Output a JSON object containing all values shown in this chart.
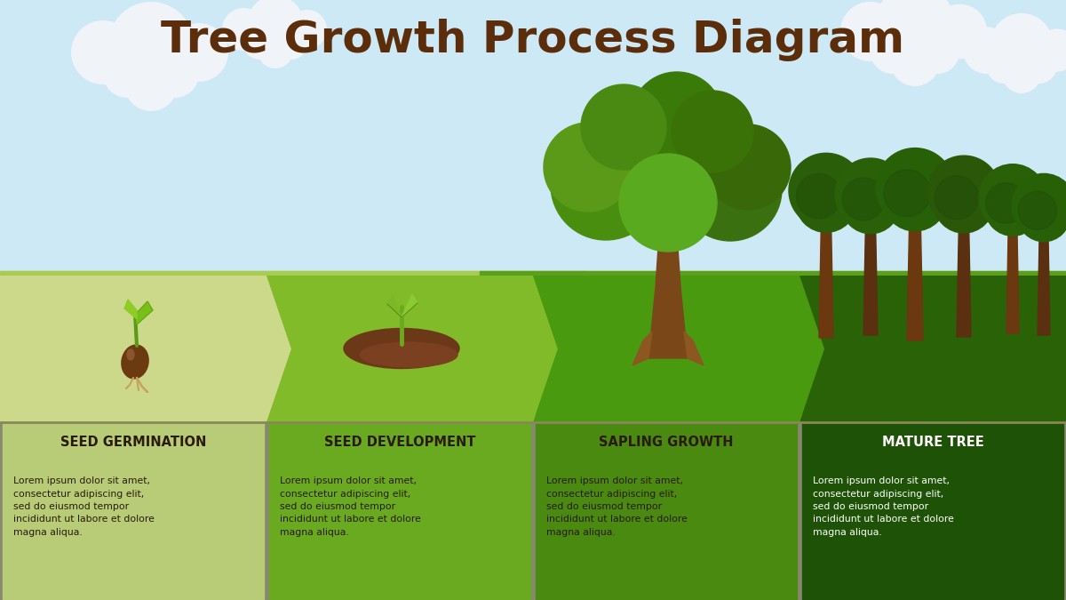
{
  "title": "Tree Growth Process Diagram",
  "title_color": "#5c2d0a",
  "title_fontsize": 36,
  "title_fontweight": "bold",
  "bg_sky_color": "#cce9f5",
  "arrow_colors": [
    "#cdd98a",
    "#82bb2a",
    "#4a9a10",
    "#2a6208"
  ],
  "box_colors": [
    "#b8cc78",
    "#6aaa20",
    "#4a8a10",
    "#1e5206"
  ],
  "stages": [
    "SEED GERMINATION",
    "SEED DEVELOPMENT",
    "SAPLING GROWTH",
    "MATURE TREE"
  ],
  "stage_text_colors": [
    "#2a1a08",
    "#2a1a08",
    "#2a1a08",
    "#ffffff"
  ],
  "body_text": "Lorem ipsum dolor sit amet,\nconsectetur adipiscing elit,\nsed do eiusmod tempor\nincididunt ut labore et dolore\nmagna aliqua.",
  "body_text_colors": [
    "#2a1a08",
    "#2a1a08",
    "#2a1a08",
    "#ffffff"
  ],
  "cloud_color": "#f0f4f8",
  "ground_tan_color": "#c0b882",
  "ground_green_color": "#7ab828",
  "ground_dark_green": "#4a8a10"
}
